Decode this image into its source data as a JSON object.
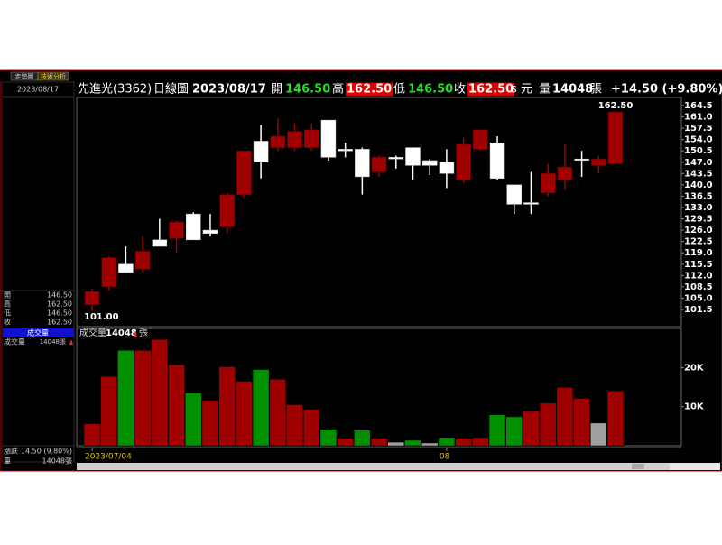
{
  "header": {
    "name": "先進光(3362)",
    "period": "日線圖",
    "date": "2023/08/17",
    "fields": [
      {
        "label": "開",
        "value": "146.50"
      },
      {
        "label": "高",
        "value": "162.50"
      },
      {
        "label": "低",
        "value": "146.50"
      },
      {
        "label": "收",
        "value": "162.50"
      }
    ],
    "unit": "s 元",
    "volume_label": "量",
    "volume": "14048",
    "volume_unit": "張",
    "change": "+14.50 (+9.80%)"
  },
  "sidebar": {
    "tabs": [
      "走勢圖",
      "技術分析"
    ],
    "date": "2023/08/17",
    "quote": [
      [
        "開",
        "146.50"
      ],
      [
        "高",
        "162.50"
      ],
      [
        "低",
        "146.50"
      ],
      [
        "收",
        "162.50"
      ]
    ],
    "volume_header": "成交量",
    "volume_row": [
      "成交量",
      "14048張"
    ],
    "footer": [
      [
        "漲跌",
        "14.50 (9.80%)"
      ],
      [
        "量",
        "14048張"
      ]
    ]
  },
  "chart_data": [
    {
      "type": "candlestick",
      "categories": [
        "2023/07/04",
        null,
        null,
        null,
        null,
        null,
        null,
        null,
        null,
        null,
        null,
        null,
        null,
        null,
        null,
        null,
        null,
        null,
        null,
        null,
        null,
        "08",
        null,
        null,
        null,
        null,
        null,
        null,
        null,
        null,
        null,
        null
      ],
      "open": [
        103,
        108.5,
        115.5,
        114,
        123,
        123.5,
        131,
        126,
        127,
        137,
        153.5,
        151.5,
        151.5,
        151.5,
        160,
        151,
        151,
        144,
        148.5,
        151.5,
        147.5,
        147,
        141.5,
        151,
        153,
        140,
        134.5,
        137.5,
        141.5,
        148,
        146,
        146.5
      ],
      "high": [
        108,
        118,
        121,
        124,
        129.5,
        129,
        131.5,
        131,
        137.5,
        150.5,
        158.5,
        160.5,
        159,
        159,
        160,
        153,
        151.5,
        149,
        149,
        151.5,
        148,
        151,
        154.5,
        157,
        155,
        140,
        144,
        146.5,
        152.5,
        150.5,
        149,
        162.5
      ],
      "low": [
        101,
        107.5,
        113,
        113,
        121,
        119,
        123,
        124,
        125,
        136,
        142,
        150.5,
        150.5,
        150.5,
        147.5,
        148.5,
        137,
        142.5,
        145,
        141.5,
        143,
        139,
        140.5,
        150.5,
        141.5,
        131,
        131,
        136.5,
        138.5,
        142.5,
        143.5,
        146.5
      ],
      "close": [
        107,
        117.5,
        113,
        119.5,
        121,
        128.5,
        123,
        125,
        137,
        150.5,
        147,
        155,
        156.5,
        157,
        148.5,
        150.5,
        142.5,
        148.5,
        148,
        146,
        146,
        143.5,
        152.5,
        157,
        142,
        134,
        134,
        143.5,
        145.5,
        148,
        148,
        162.5
      ],
      "up_color": "#a00000",
      "down_color": "#ffffff",
      "ylim": [
        96.2,
        167
      ],
      "yticks": [
        164.5,
        {
          "value": 161,
          "label": "161.0"
        },
        157.5,
        {
          "value": 154,
          "label": "154.0"
        },
        150.5,
        {
          "value": 147,
          "label": "147.0"
        },
        143.5,
        {
          "value": 140,
          "label": "140.0"
        },
        136.5,
        {
          "value": 133,
          "label": "133.0"
        },
        129.5,
        {
          "value": 126,
          "label": "126.0"
        },
        122.5,
        {
          "value": 119,
          "label": "119.0"
        },
        115.5,
        {
          "value": 112,
          "label": "112.0"
        },
        108.5,
        {
          "value": 105,
          "label": "105.0"
        },
        101.5
      ],
      "annotations": [
        "162.50",
        "101.00"
      ]
    },
    {
      "type": "bar",
      "title": "成交量",
      "value_text": "14048",
      "unit": "張",
      "values": [
        5600,
        17700,
        24400,
        24400,
        27200,
        20700,
        13500,
        11600,
        20200,
        16500,
        19500,
        17000,
        10500,
        9300,
        4200,
        1900,
        4000,
        1900,
        900,
        1400,
        700,
        2100,
        1900,
        2100,
        7900,
        7400,
        8800,
        10900,
        14900,
        12100,
        5800,
        14048
      ],
      "colors": [
        "#a00000",
        "#a00000",
        "#009000",
        "#a00000",
        "#a00000",
        "#a00000",
        "#009000",
        "#a00000",
        "#a00000",
        "#a00000",
        "#009000",
        "#a00000",
        "#a00000",
        "#a00000",
        "#009000",
        "#a00000",
        "#009000",
        "#a00000",
        "#a0a0a0",
        "#009000",
        "#a0a0a0",
        "#009000",
        "#a00000",
        "#a00000",
        "#009000",
        "#009000",
        "#a00000",
        "#a00000",
        "#a00000",
        "#a00000",
        "#a0a0a0",
        "#a00000"
      ],
      "ylim": [
        0,
        30000
      ],
      "yticks": [
        {
          "value": 20000,
          "label": "20K"
        },
        {
          "value": 10000,
          "label": "10K"
        }
      ]
    }
  ]
}
